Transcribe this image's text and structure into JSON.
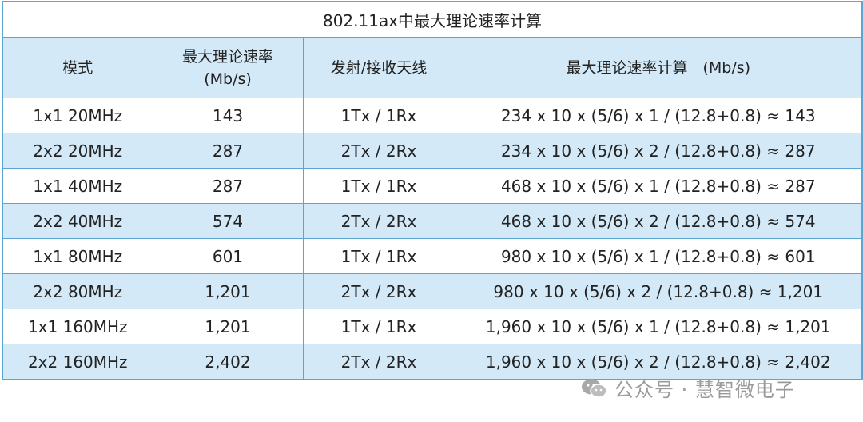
{
  "table": {
    "title": "802.11ax中最大理论速率计算",
    "headers": [
      {
        "line1": "模式",
        "line2": ""
      },
      {
        "line1": "最大理论速率",
        "line2": "(Mb/s)"
      },
      {
        "line1": "发射/接收天线",
        "line2": ""
      },
      {
        "line1": "最大理论速率计算　(Mb/s)",
        "line2": ""
      }
    ],
    "rows": [
      {
        "mode": "1x1 20MHz",
        "rate": "143",
        "antennas": "1Tx / 1Rx",
        "calc": "234 x 10 x (5/6) x 1 / (12.8+0.8) ≈ 143"
      },
      {
        "mode": "2x2 20MHz",
        "rate": "287",
        "antennas": "2Tx / 2Rx",
        "calc": "234 x 10 x (5/6) x 2 / (12.8+0.8) ≈ 287"
      },
      {
        "mode": "1x1 40MHz",
        "rate": "287",
        "antennas": "1Tx / 1Rx",
        "calc": "468 x 10 x (5/6) x 1 / (12.8+0.8) ≈ 287"
      },
      {
        "mode": "2x2 40MHz",
        "rate": "574",
        "antennas": "2Tx / 2Rx",
        "calc": "468 x 10 x (5/6) x 2 / (12.8+0.8) ≈ 574"
      },
      {
        "mode": "1x1 80MHz",
        "rate": "601",
        "antennas": "1Tx / 1Rx",
        "calc": "980 x 10 x (5/6) x 1 / (12.8+0.8) ≈ 601"
      },
      {
        "mode": "2x2 80MHz",
        "rate": "1,201",
        "antennas": "2Tx / 2Rx",
        "calc": "980 x 10 x (5/6) x 2 / (12.8+0.8) ≈ 1,201"
      },
      {
        "mode": "1x1 160MHz",
        "rate": "1,201",
        "antennas": "1Tx / 1Rx",
        "calc": "1,960 x 10 x (5/6) x 1 / (12.8+0.8) ≈ 1,201"
      },
      {
        "mode": "2x2 160MHz",
        "rate": "2,402",
        "antennas": "2Tx / 2Rx",
        "calc": "1,960 x 10 x (5/6) x 2 / (12.8+0.8) ≈ 2,402"
      }
    ]
  },
  "watermark": {
    "text": "公众号 · 慧智微电子",
    "icon": "wechat-icon"
  },
  "colors": {
    "border": "#5aa6d1",
    "stripe": "#d3e9f7",
    "text": "#222222",
    "watermark": "#9a9a9a"
  }
}
